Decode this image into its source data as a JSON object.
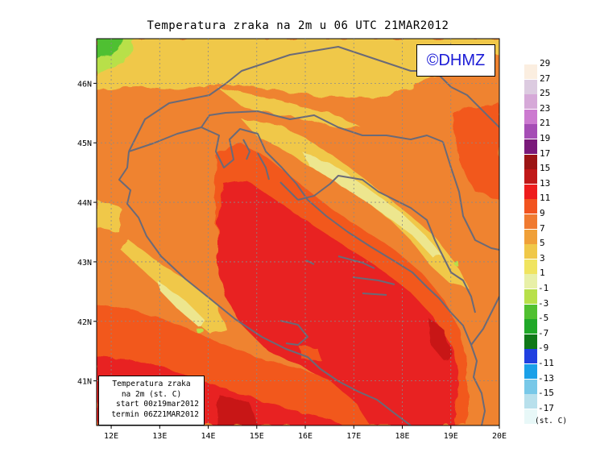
{
  "title": "Temperatura zraka na 2m u 06 UTC 21MAR2012",
  "copyright": "©DHMZ",
  "info_box": {
    "line1": "Temperatura zraka",
    "line2": "na 2m (st. C)",
    "line3": "start 00z19mar2012",
    "line4": "termin 06Z21MAR2012"
  },
  "x_ticks": [
    "12E",
    "13E",
    "14E",
    "15E",
    "16E",
    "17E",
    "18E",
    "19E",
    "20E"
  ],
  "y_ticks": [
    "41N",
    "42N",
    "43N",
    "44N",
    "45N",
    "46N"
  ],
  "lon_range": [
    11.7,
    20.0
  ],
  "lat_range": [
    40.25,
    46.75
  ],
  "legend": {
    "unit": "(st. C)",
    "labels": [
      "29",
      "27",
      "25",
      "23",
      "21",
      "19",
      "17",
      "15",
      "13",
      "11",
      "9",
      "7",
      "5",
      "3",
      "1",
      "-1",
      "-3",
      "-5",
      "-7",
      "-9",
      "-11",
      "-13",
      "-15",
      "-17"
    ],
    "colors": [
      "#fbeee0",
      "#dccbe0",
      "#d6a9d8",
      "#cc7ad0",
      "#a54db5",
      "#7a1a7a",
      "#9c1515",
      "#c01818",
      "#ee1c1c",
      "#f2531f",
      "#f07a30",
      "#f0a038",
      "#f0c848",
      "#f0e460",
      "#e8f0a8",
      "#b8e04a",
      "#50c030",
      "#20a828",
      "#107818",
      "#2040e0",
      "#1aa0e8",
      "#78c8e8",
      "#b8e0ec",
      "#e8f8f8"
    ]
  },
  "colors": {
    "sea_warm": "#e82020",
    "sea_deep": "#c81818",
    "coast_orange": "#f2581f",
    "land_orange": "#ef8330",
    "land_yellow": "#f0c848",
    "land_pale": "#ede68e",
    "alpine_green": "#50c030",
    "coastline": "#6a6a78",
    "copyright_text": "#1b1bd6"
  }
}
